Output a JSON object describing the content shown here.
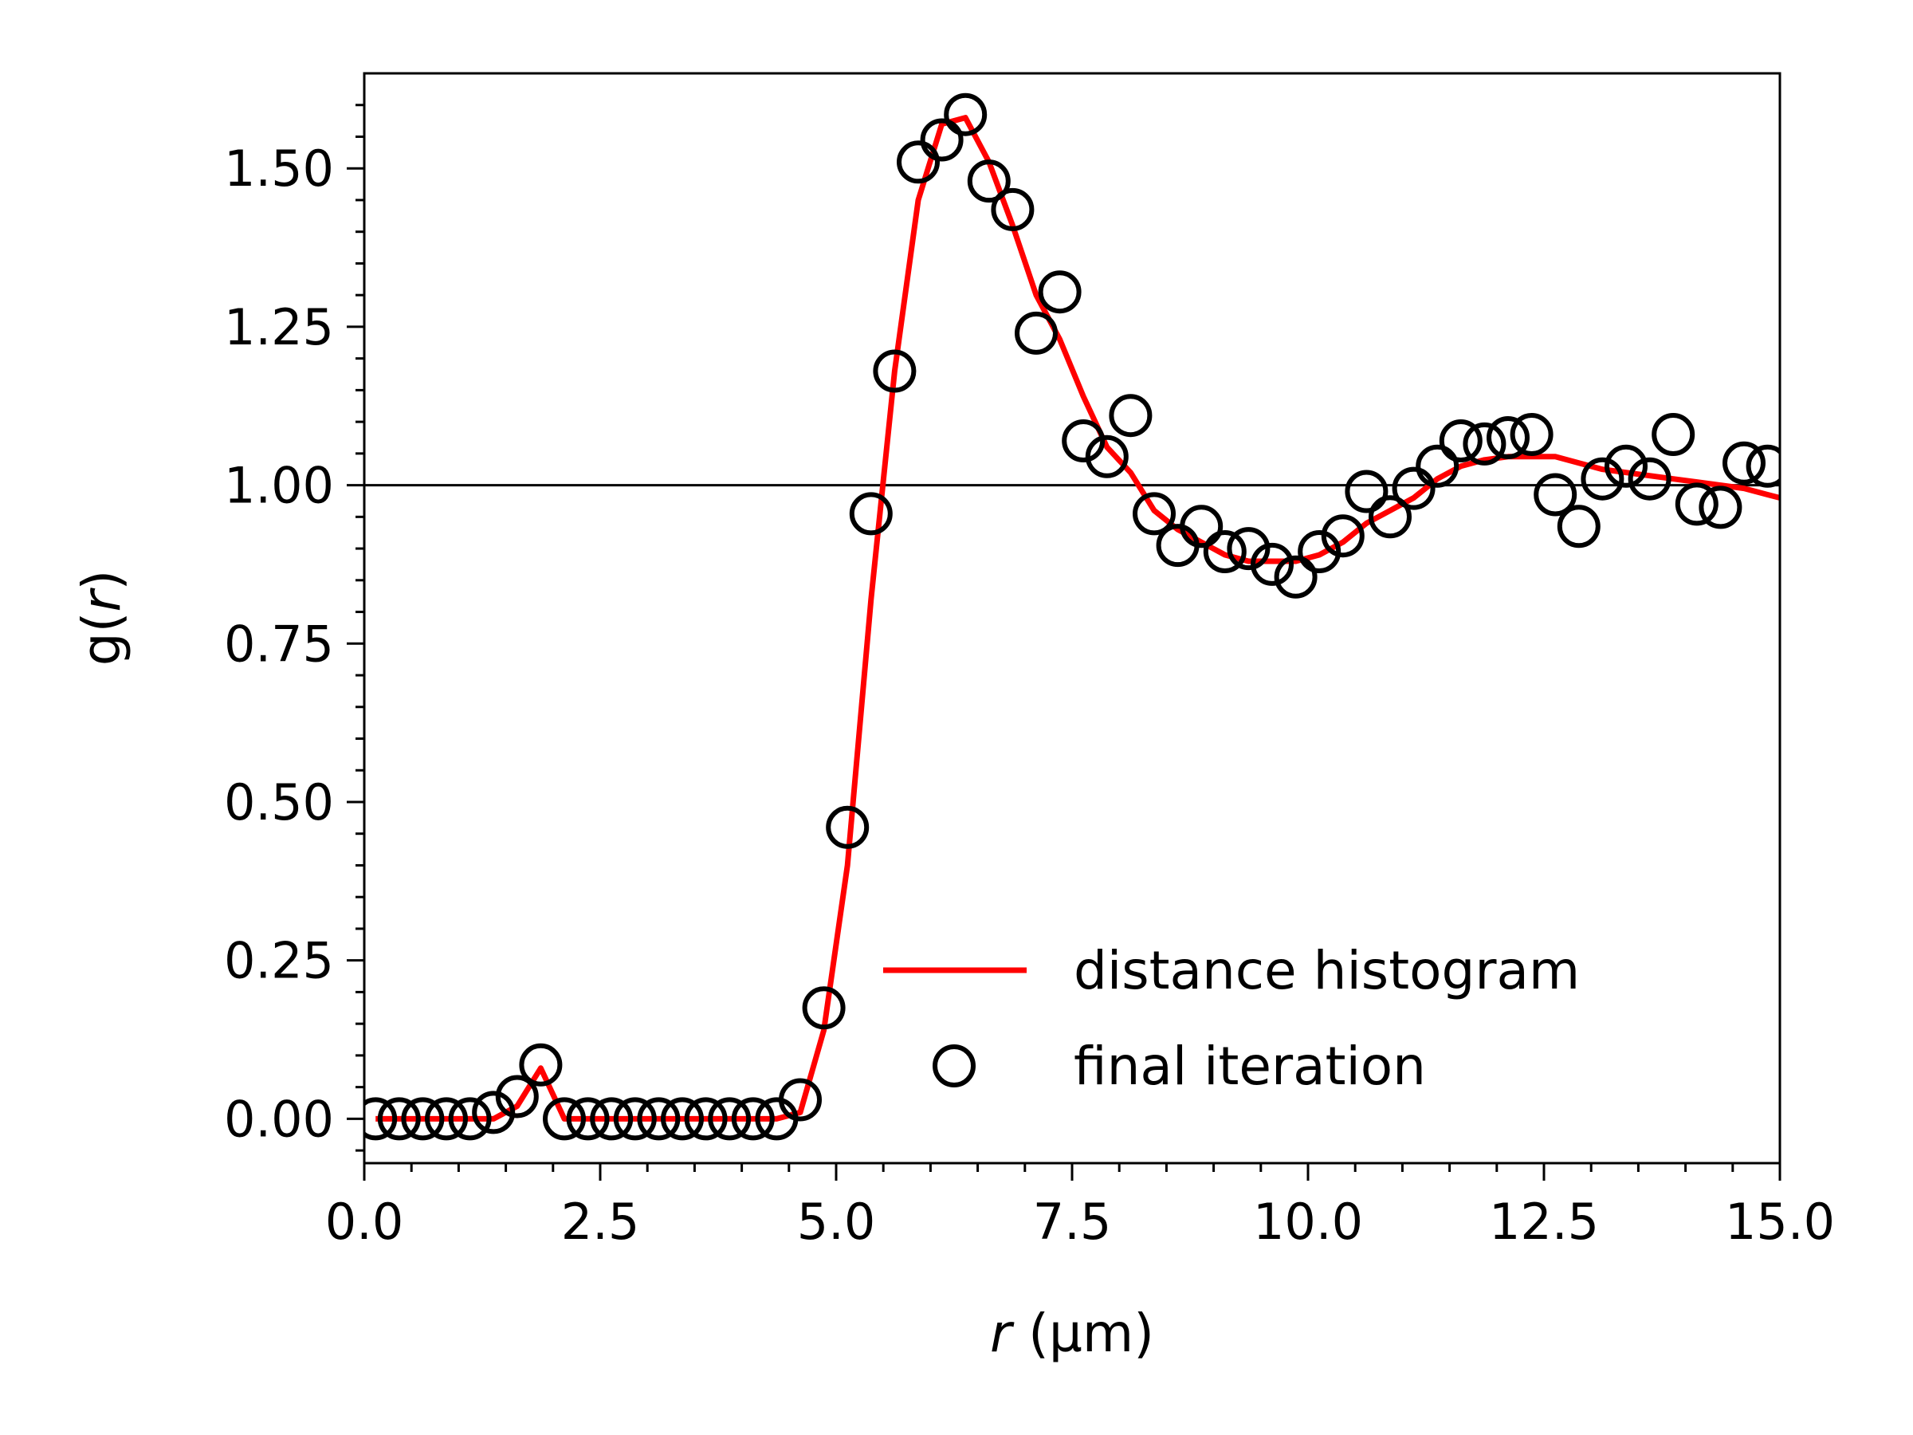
{
  "chart_data": {
    "type": "line",
    "xlabel_var": "r",
    "xlabel_unit": " (µm)",
    "ylabel_func": "g(",
    "ylabel_var": "r",
    "ylabel_close": ")",
    "xlim": [
      0.0,
      15.0
    ],
    "ylim": [
      -0.07,
      1.65
    ],
    "xticks": [
      "0.0",
      "2.5",
      "5.0",
      "7.5",
      "10.0",
      "12.5",
      "15.0"
    ],
    "yticks": [
      "0.00",
      "0.25",
      "0.50",
      "0.75",
      "1.00",
      "1.25",
      "1.50"
    ],
    "reference_line_y": 1.0,
    "grid": false,
    "legend_position": "lower-right",
    "colors": {
      "histogram": "#ff0000",
      "iteration": "#000000",
      "reference": "#000000"
    },
    "series": [
      {
        "name": "distance histogram",
        "style": "line",
        "x": [
          0.12,
          0.37,
          0.62,
          0.87,
          1.12,
          1.37,
          1.62,
          1.87,
          2.12,
          2.37,
          2.62,
          2.87,
          3.12,
          3.37,
          3.62,
          3.87,
          4.12,
          4.37,
          4.62,
          4.87,
          5.12,
          5.37,
          5.62,
          5.87,
          6.12,
          6.37,
          6.62,
          6.87,
          7.12,
          7.37,
          7.62,
          7.87,
          8.12,
          8.37,
          8.62,
          8.87,
          9.12,
          9.37,
          9.62,
          9.87,
          10.12,
          10.37,
          10.62,
          10.87,
          11.12,
          11.37,
          11.62,
          11.87,
          12.12,
          12.37,
          12.62,
          12.87,
          13.12,
          13.37,
          13.62,
          13.87,
          14.12,
          14.37,
          14.62,
          14.87,
          15.0
        ],
        "values": [
          0.0,
          0.0,
          0.0,
          0.0,
          0.0,
          0.0,
          0.02,
          0.08,
          0.0,
          0.0,
          0.0,
          0.0,
          0.0,
          0.0,
          0.0,
          0.0,
          0.0,
          0.0,
          0.01,
          0.14,
          0.4,
          0.82,
          1.18,
          1.45,
          1.57,
          1.58,
          1.51,
          1.41,
          1.3,
          1.23,
          1.14,
          1.06,
          1.02,
          0.96,
          0.93,
          0.91,
          0.89,
          0.88,
          0.88,
          0.88,
          0.89,
          0.91,
          0.94,
          0.96,
          0.98,
          1.01,
          1.03,
          1.04,
          1.045,
          1.045,
          1.045,
          1.035,
          1.025,
          1.02,
          1.015,
          1.01,
          1.005,
          1.0,
          0.995,
          0.985,
          0.98
        ]
      },
      {
        "name": "final iteration",
        "style": "open-circle",
        "x": [
          0.12,
          0.37,
          0.62,
          0.87,
          1.12,
          1.37,
          1.62,
          1.87,
          2.12,
          2.37,
          2.62,
          2.87,
          3.12,
          3.37,
          3.62,
          3.87,
          4.12,
          4.37,
          4.62,
          4.87,
          5.12,
          5.37,
          5.62,
          5.87,
          6.12,
          6.37,
          6.62,
          6.87,
          7.12,
          7.37,
          7.62,
          7.87,
          8.12,
          8.37,
          8.62,
          8.87,
          9.12,
          9.37,
          9.62,
          9.87,
          10.12,
          10.37,
          10.62,
          10.87,
          11.12,
          11.37,
          11.62,
          11.87,
          12.12,
          12.37,
          12.62,
          12.87,
          13.12,
          13.37,
          13.62,
          13.87,
          14.12,
          14.37,
          14.62,
          14.87
        ],
        "values": [
          0.0,
          0.0,
          0.0,
          0.0,
          0.0,
          0.01,
          0.035,
          0.085,
          0.0,
          0.0,
          0.0,
          0.0,
          0.0,
          0.0,
          0.0,
          0.0,
          0.0,
          0.0,
          0.03,
          0.175,
          0.46,
          0.955,
          1.18,
          1.51,
          1.545,
          1.585,
          1.48,
          1.435,
          1.24,
          1.305,
          1.07,
          1.045,
          1.11,
          0.955,
          0.905,
          0.935,
          0.895,
          0.9,
          0.875,
          0.855,
          0.895,
          0.92,
          0.99,
          0.95,
          0.995,
          1.03,
          1.07,
          1.065,
          1.075,
          1.08,
          0.985,
          0.935,
          1.01,
          1.03,
          1.01,
          1.08,
          0.97,
          0.965,
          1.035,
          1.03
        ]
      }
    ]
  }
}
